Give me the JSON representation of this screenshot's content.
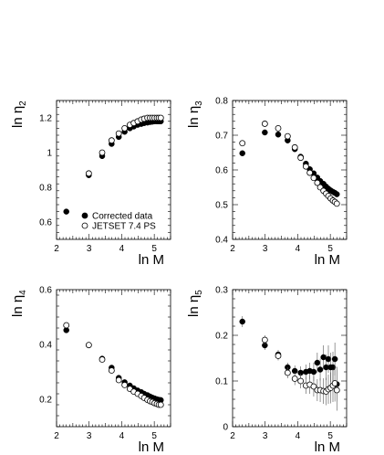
{
  "chart_data": [
    {
      "type": "scatter",
      "panel": "top-left",
      "xlabel": "ln M",
      "ylabel": "ln η2",
      "ylabel_main": "ln η",
      "ylabel_sub": "2",
      "xlim": [
        2,
        5.5
      ],
      "ylim": [
        0.5,
        1.3
      ],
      "xticks": [
        2,
        3,
        4,
        5
      ],
      "yticks": [
        0.6,
        0.8,
        1,
        1.2
      ],
      "ytick_labels": [
        "0.6",
        "0.8",
        "1",
        "1.2"
      ],
      "legend": {
        "placement": "lower-left",
        "entries": [
          "Corrected data",
          "JETSET 7.4 PS"
        ]
      },
      "series": [
        {
          "name": "Corrected data",
          "marker": "filled-circle",
          "x": [
            2.3,
            2.99,
            3.4,
            3.69,
            3.91,
            4.09,
            4.25,
            4.37,
            4.49,
            4.6,
            4.69,
            4.79,
            4.87,
            4.94,
            5.01,
            5.08,
            5.14,
            5.2
          ],
          "y": [
            0.66,
            0.87,
            0.98,
            1.05,
            1.09,
            1.12,
            1.14,
            1.15,
            1.16,
            1.165,
            1.17,
            1.173,
            1.176,
            1.178,
            1.18,
            1.18,
            1.18,
            1.18
          ]
        },
        {
          "name": "JETSET 7.4 PS",
          "marker": "open-circle",
          "x": [
            2.99,
            3.4,
            3.69,
            3.91,
            4.09,
            4.25,
            4.37,
            4.49,
            4.6,
            4.69,
            4.79,
            4.87,
            4.94,
            5.01,
            5.08,
            5.14,
            5.2
          ],
          "y": [
            0.88,
            1.0,
            1.07,
            1.11,
            1.14,
            1.16,
            1.17,
            1.18,
            1.19,
            1.195,
            1.2,
            1.2,
            1.2,
            1.2,
            1.2,
            1.2,
            1.2
          ]
        }
      ]
    },
    {
      "type": "scatter",
      "panel": "top-right",
      "xlabel": "ln M",
      "ylabel": "ln η3",
      "ylabel_main": "ln η",
      "ylabel_sub": "3",
      "xlim": [
        2,
        5.5
      ],
      "ylim": [
        0.4,
        0.8
      ],
      "xticks": [
        2,
        3,
        4,
        5
      ],
      "yticks": [
        0.4,
        0.5,
        0.6,
        0.7,
        0.8
      ],
      "ytick_labels": [
        "0.4",
        "0.5",
        "0.6",
        "0.7",
        "0.8"
      ],
      "series": [
        {
          "name": "Corrected data",
          "marker": "filled-circle",
          "x": [
            2.3,
            2.99,
            3.4,
            3.69,
            3.91,
            4.09,
            4.25,
            4.37,
            4.49,
            4.6,
            4.69,
            4.79,
            4.87,
            4.94,
            5.01,
            5.08,
            5.14,
            5.2
          ],
          "y": [
            0.648,
            0.708,
            0.702,
            0.685,
            0.66,
            0.638,
            0.618,
            0.602,
            0.59,
            0.578,
            0.568,
            0.56,
            0.552,
            0.546,
            0.541,
            0.537,
            0.534,
            0.53
          ]
        },
        {
          "name": "JETSET 7.4 PS",
          "marker": "open-circle",
          "x": [
            2.3,
            2.99,
            3.4,
            3.69,
            3.91,
            4.09,
            4.25,
            4.37,
            4.49,
            4.6,
            4.69,
            4.79,
            4.87,
            4.94,
            5.01,
            5.08,
            5.14,
            5.2
          ],
          "y": [
            0.677,
            0.733,
            0.72,
            0.697,
            0.665,
            0.635,
            0.61,
            0.592,
            0.577,
            0.563,
            0.55,
            0.54,
            0.532,
            0.525,
            0.518,
            0.512,
            0.508,
            0.503
          ]
        }
      ]
    },
    {
      "type": "scatter",
      "panel": "bottom-left",
      "xlabel": "ln M",
      "ylabel": "ln η4",
      "ylabel_main": "ln η",
      "ylabel_sub": "4",
      "xlim": [
        2,
        5.5
      ],
      "ylim": [
        0.1,
        0.6
      ],
      "xticks": [
        2,
        3,
        4,
        5
      ],
      "yticks": [
        0.2,
        0.4,
        0.6
      ],
      "ytick_labels": [
        "0.2",
        "0.4",
        "0.6"
      ],
      "series": [
        {
          "name": "Corrected data",
          "marker": "filled-circle",
          "x": [
            2.3,
            2.99,
            3.4,
            3.69,
            3.91,
            4.09,
            4.25,
            4.37,
            4.49,
            4.6,
            4.69,
            4.79,
            4.87,
            4.94,
            5.01,
            5.08,
            5.14,
            5.2
          ],
          "y": [
            0.452,
            0.397,
            0.348,
            0.315,
            0.278,
            0.262,
            0.25,
            0.24,
            0.232,
            0.226,
            0.22,
            0.215,
            0.21,
            0.206,
            0.203,
            0.2,
            0.198,
            0.197
          ]
        },
        {
          "name": "JETSET 7.4 PS",
          "marker": "open-circle",
          "x": [
            2.3,
            2.99,
            3.4,
            3.69,
            3.91,
            4.09,
            4.25,
            4.37,
            4.49,
            4.6,
            4.69,
            4.79,
            4.87,
            4.94,
            5.01,
            5.08,
            5.14,
            5.2
          ],
          "y": [
            0.47,
            0.398,
            0.345,
            0.305,
            0.27,
            0.252,
            0.238,
            0.228,
            0.22,
            0.212,
            0.205,
            0.198,
            0.193,
            0.19,
            0.186,
            0.183,
            0.18,
            0.18
          ]
        }
      ]
    },
    {
      "type": "scatter",
      "panel": "bottom-right",
      "xlabel": "ln M",
      "ylabel": "ln η5",
      "ylabel_main": "ln η",
      "ylabel_sub": "5",
      "xlim": [
        2,
        5.5
      ],
      "ylim": [
        0,
        0.3
      ],
      "xticks": [
        2,
        3,
        4,
        5
      ],
      "yticks": [
        0,
        0.1,
        0.2,
        0.3
      ],
      "ytick_labels": [
        "0",
        "0.1",
        "0.2",
        "0.3"
      ],
      "series": [
        {
          "name": "Corrected data",
          "marker": "filled-circle",
          "x": [
            2.3,
            2.99,
            3.4,
            3.69,
            3.91,
            4.09,
            4.25,
            4.37,
            4.49,
            4.6,
            4.69,
            4.79,
            4.87,
            4.94,
            5.01,
            5.08,
            5.14,
            5.2
          ],
          "y": [
            0.23,
            0.178,
            0.158,
            0.13,
            0.122,
            0.118,
            0.12,
            0.122,
            0.12,
            0.14,
            0.125,
            0.152,
            0.13,
            0.148,
            0.13,
            0.13,
            0.148,
            0.093
          ],
          "err": [
            0.012,
            0.01,
            0.01,
            0.01,
            0.012,
            0.014,
            0.016,
            0.018,
            0.02,
            0.022,
            0.024,
            0.026,
            0.028,
            0.03,
            0.032,
            0.034,
            0.036,
            0.038
          ]
        },
        {
          "name": "JETSET 7.4 PS",
          "marker": "open-circle",
          "x": [
            2.99,
            3.4,
            3.69,
            3.91,
            4.09,
            4.25,
            4.37,
            4.49,
            4.6,
            4.69,
            4.79,
            4.87,
            4.94,
            5.01,
            5.08,
            5.14,
            5.2
          ],
          "y": [
            0.19,
            0.155,
            0.118,
            0.105,
            0.1,
            0.09,
            0.092,
            0.088,
            0.08,
            0.08,
            0.078,
            0.077,
            0.082,
            0.085,
            0.09,
            0.095,
            0.08
          ],
          "err": [
            0.01,
            0.01,
            0.012,
            0.014,
            0.016,
            0.018,
            0.02,
            0.022,
            0.024,
            0.026,
            0.028,
            0.03,
            0.032,
            0.034,
            0.036,
            0.04,
            0.045
          ]
        }
      ]
    }
  ]
}
